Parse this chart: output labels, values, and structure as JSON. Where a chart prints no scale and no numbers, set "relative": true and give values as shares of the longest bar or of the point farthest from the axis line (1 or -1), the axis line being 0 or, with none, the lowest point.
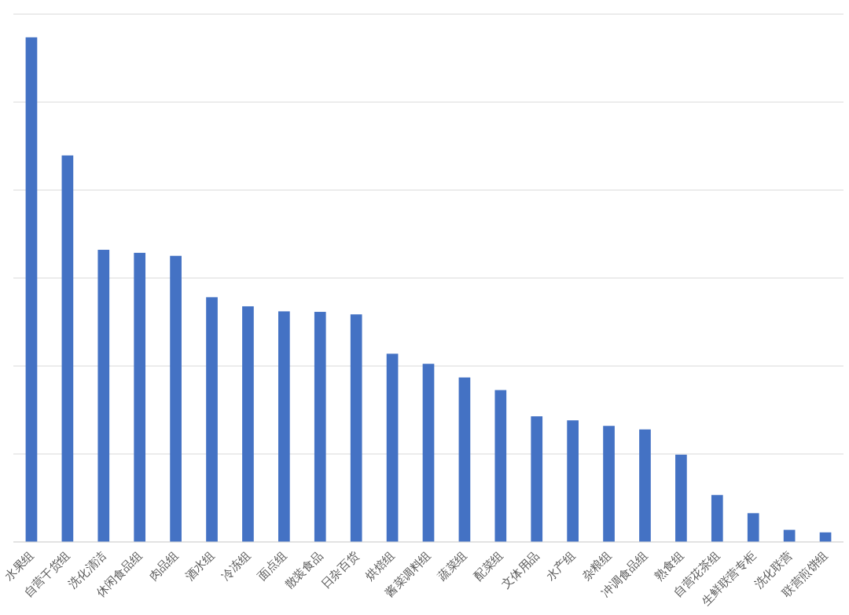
{
  "chart_data": {
    "type": "bar",
    "categories": [
      "水果组",
      "自营干货组",
      "洗化清洁",
      "休闲食品组",
      "肉品组",
      "酒水组",
      "冷冻组",
      "面点组",
      "散装食品",
      "日杂百货",
      "烘焙组",
      "酱菜调料组",
      "蔬菜组",
      "配菜组",
      "文体用品",
      "水产组",
      "杂粮组",
      "冲调食品组",
      "熟食组",
      "自营花茶组",
      "生鲜联营专柜",
      "洗化联营",
      "联营煎饼组"
    ],
    "values": [
      1.0,
      0.766,
      0.579,
      0.573,
      0.567,
      0.485,
      0.467,
      0.457,
      0.456,
      0.451,
      0.373,
      0.353,
      0.326,
      0.301,
      0.249,
      0.241,
      0.23,
      0.223,
      0.173,
      0.093,
      0.057,
      0.024,
      0.019
    ],
    "color": "#4472c4",
    "relative": true,
    "grid": "y"
  }
}
